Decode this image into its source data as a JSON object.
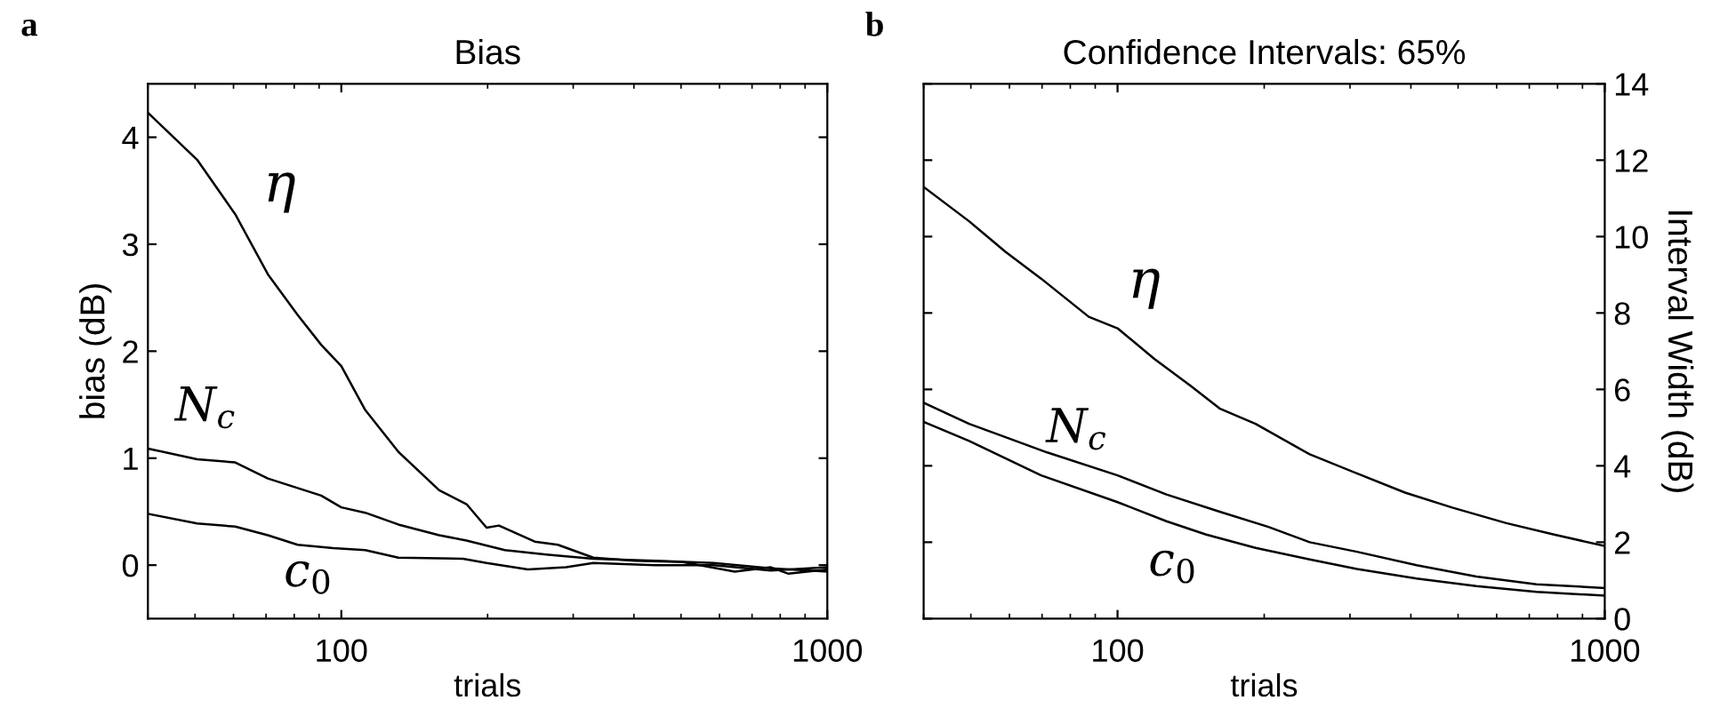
{
  "chart_data": [
    {
      "type": "line",
      "title": "Bias",
      "xlabel": "trials",
      "ylabel": "bias (dB)",
      "log": "x",
      "xlim": [
        40,
        1000
      ],
      "xticks": [
        100,
        1000
      ],
      "ylim": [
        -0.5,
        4.5
      ],
      "yticks": [
        0,
        1,
        2,
        3,
        4
      ],
      "grid": false,
      "legend": false,
      "annotations": [
        "a"
      ],
      "series": [
        {
          "name": "η",
          "color": "#000000",
          "x": [
            40,
            50.5,
            60.5,
            70.6,
            81.3,
            90.9,
            100,
            112,
            131,
            159,
            181,
            199,
            211,
            250,
            279,
            330,
            402,
            502,
            645,
            765,
            832,
            1000
          ],
          "values": [
            4.23,
            3.79,
            3.28,
            2.72,
            2.34,
            2.06,
            1.86,
            1.45,
            1.06,
            0.7,
            0.57,
            0.35,
            0.37,
            0.22,
            0.19,
            0.07,
            0.04,
            0.03,
            -0.06,
            -0.02,
            -0.08,
            -0.04
          ]
        },
        {
          "name": "N$_{c}$",
          "color": "#000000",
          "x": [
            40,
            50.5,
            60.5,
            70.6,
            90.9,
            100,
            112,
            131,
            159,
            181,
            217,
            264,
            330,
            443,
            584,
            765,
            1000
          ],
          "values": [
            1.09,
            0.99,
            0.96,
            0.81,
            0.65,
            0.54,
            0.49,
            0.38,
            0.28,
            0.23,
            0.14,
            0.1,
            0.06,
            0.04,
            0.02,
            -0.03,
            -0.06
          ]
        },
        {
          "name": "c$_{0}$",
          "color": "#000000",
          "x": [
            40,
            50.5,
            60.5,
            70.6,
            81.3,
            96.2,
            112,
            131,
            178,
            199,
            242,
            290,
            330,
            443,
            584,
            765,
            1000
          ],
          "values": [
            0.48,
            0.39,
            0.36,
            0.28,
            0.19,
            0.16,
            0.14,
            0.07,
            0.06,
            0.02,
            -0.04,
            -0.02,
            0.02,
            0,
            0,
            -0.05,
            -0.02
          ]
        }
      ]
    },
    {
      "type": "line",
      "title": "Confidence Intervals: 65%",
      "xlabel": "trials",
      "ylabel": "Interval Width (dB)",
      "log": "x",
      "xlim": [
        40,
        1000
      ],
      "xticks": [
        100,
        1000
      ],
      "ylim": [
        0,
        14
      ],
      "yticks": [
        0,
        2,
        4,
        6,
        8,
        10,
        12,
        14
      ],
      "grid": false,
      "legend": false,
      "annotations": [
        "b"
      ],
      "series": [
        {
          "name": "η",
          "color": "#000000",
          "x": [
            40,
            49.6,
            58.9,
            69.7,
            87.3,
            100,
            119,
            141,
            162,
            192,
            248,
            310,
            389,
            488,
            628,
            787,
            1000
          ],
          "values": [
            11.3,
            10.4,
            9.6,
            8.9,
            7.9,
            7.6,
            6.8,
            6.1,
            5.5,
            5.1,
            4.3,
            3.8,
            3.3,
            2.9,
            2.5,
            2.2,
            1.9
          ]
        },
        {
          "name": "N$_{c}$",
          "color": "#000000",
          "x": [
            40,
            49.6,
            58.9,
            71.7,
            100,
            126,
            162,
            204,
            248,
            310,
            411,
            545,
            724,
            1000
          ],
          "values": [
            5.65,
            5.1,
            4.75,
            4.35,
            3.75,
            3.25,
            2.8,
            2.4,
            2.0,
            1.75,
            1.4,
            1.1,
            0.9,
            0.8
          ]
        },
        {
          "name": "c$_{0}$",
          "color": "#000000",
          "x": [
            40,
            49.6,
            69.7,
            100,
            126,
            152,
            192,
            248,
            310,
            411,
            545,
            724,
            1000
          ],
          "values": [
            5.15,
            4.65,
            3.75,
            3.05,
            2.55,
            2.2,
            1.85,
            1.55,
            1.3,
            1.05,
            0.85,
            0.7,
            0.6
          ]
        }
      ]
    }
  ]
}
